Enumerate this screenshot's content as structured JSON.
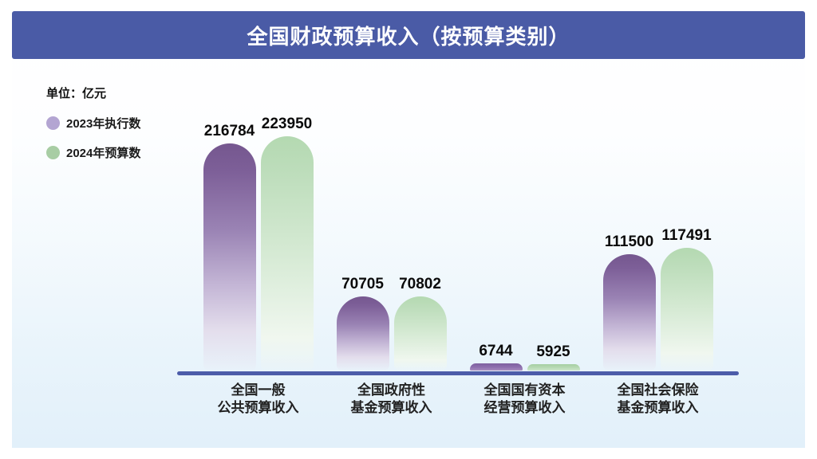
{
  "banner": {
    "title": "全国财政预算收入（按预算类别）"
  },
  "unit_label": "单位：亿元",
  "legend": [
    {
      "label": "2023年执行数",
      "color": "#b3a5d2"
    },
    {
      "label": "2024年预算数",
      "color": "#a8cda4"
    }
  ],
  "chart_data": {
    "type": "bar",
    "title": "全国财政预算收入（按预算类别）",
    "unit": "亿元",
    "categories": [
      "全国一般\n公共预算收入",
      "全国政府性\n基金预算收入",
      "全国国有资本\n经营预算收入",
      "全国社会保险\n基金预算收入"
    ],
    "series": [
      {
        "name": "2023年执行数",
        "color": "#75578f",
        "values": [
          216784,
          70705,
          6744,
          111500
        ]
      },
      {
        "name": "2024年预算数",
        "color": "#b4d9b1",
        "values": [
          223950,
          70802,
          5925,
          117491
        ]
      }
    ],
    "ylim": [
      0,
      230000
    ],
    "grid": false,
    "legend_position": "top-left",
    "value_labels": true,
    "baseline_color": "#4c5ca9"
  },
  "colors": {
    "banner_bg": "#4a5ba6",
    "axis_line": "#4c5ca9",
    "background_top": "#ffffff",
    "background_bottom": "#e2f0fa"
  }
}
